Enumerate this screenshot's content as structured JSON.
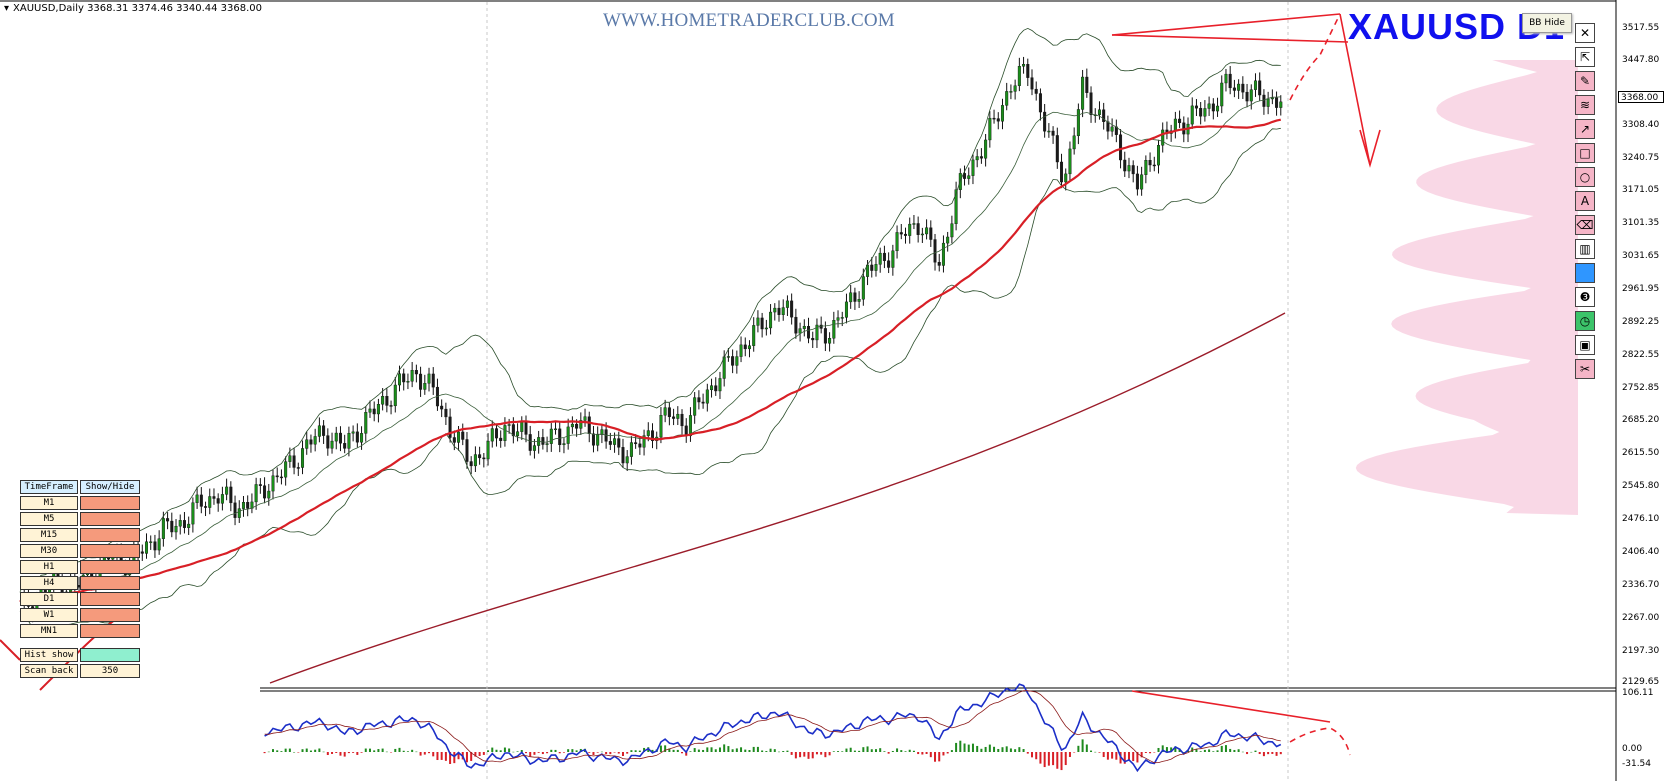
{
  "header": {
    "symbol_line": "XAUUSD,Daily  3368.31 3374.46 3340.44 3368.00"
  },
  "watermark": "WWW.HOMETRADERCLUB.COM",
  "big_title": "XAUUSD  D1",
  "bb_button": "BB Hide",
  "toolbar": {
    "icons": [
      "close-icon",
      "cursor-icon",
      "pen-icon",
      "wave-lines-icon",
      "arrow-icon",
      "rectangle-icon",
      "circle-icon",
      "text-icon",
      "eraser-icon",
      "trash-icon",
      "color-swatch-icon",
      "number-3-icon",
      "clock-icon",
      "save-icon",
      "scissors-icon"
    ],
    "glyphs": [
      "✕",
      "⇱",
      "✎",
      "≋",
      "↗",
      "□",
      "○",
      "A",
      "⌫",
      "▥",
      "",
      "❸",
      "◷",
      "▣",
      "✂"
    ],
    "colors": {
      "pink": "#f5b5c7",
      "blue": "#2f96ff"
    }
  },
  "price_axis": {
    "labels": [
      "3517.55",
      "3447.80",
      "3308.40",
      "3240.75",
      "3171.05",
      "3101.35",
      "3031.65",
      "2961.95",
      "2892.25",
      "2822.55",
      "2752.85",
      "2685.20",
      "2615.50",
      "2545.80",
      "2476.10",
      "2406.40",
      "2336.70",
      "2267.00",
      "2197.30",
      "2129.65"
    ],
    "current_price": "3368.00"
  },
  "osc_axis": {
    "labels": [
      "106.11",
      "0.00",
      "-31.54"
    ]
  },
  "panel": {
    "header": [
      "TimeFrame",
      "Show/Hide"
    ],
    "timeframes": [
      "M1",
      "M5",
      "M15",
      "M30",
      "H1",
      "H4",
      "D1",
      "W1",
      "MN1"
    ],
    "hist_label": "Hist show",
    "scan_label": "Scan back",
    "scan_value": "350"
  },
  "chart_data": {
    "type": "candlestick",
    "symbol": "XAUUSD",
    "timeframe": "Daily",
    "ohlc_last": {
      "open": 3368.31,
      "high": 3374.46,
      "low": 3340.44,
      "close": 3368.0
    },
    "ylim": [
      2129.65,
      3540
    ],
    "approx_close_path": [
      2290,
      2310,
      2345,
      2330,
      2360,
      2400,
      2385,
      2420,
      2455,
      2470,
      2510,
      2530,
      2500,
      2520,
      2560,
      2590,
      2640,
      2660,
      2630,
      2680,
      2720,
      2760,
      2790,
      2745,
      2660,
      2600,
      2630,
      2680,
      2650,
      2640,
      2655,
      2680,
      2660,
      2630,
      2620,
      2660,
      2700,
      2680,
      2740,
      2790,
      2840,
      2880,
      2930,
      2900,
      2860,
      2880,
      2930,
      3000,
      3030,
      3080,
      3110,
      3010,
      3170,
      3240,
      3310,
      3400,
      3430,
      3300,
      3200,
      3390,
      3330,
      3270,
      3180,
      3260,
      3310,
      3330,
      3350,
      3400,
      3390,
      3370,
      3368
    ],
    "indicators": [
      "Bollinger Bands",
      "Moving Average (red)",
      "Moving Average (dark red, long)",
      "Volume Profile (pink)"
    ],
    "oscillator": {
      "name": "MACD",
      "range": [
        -31.54,
        106.11
      ]
    }
  },
  "colors": {
    "bull": "#1a8f1a",
    "bear": "#1a1a1a",
    "ma_fast": "#d81f26",
    "ma_slow": "#9b1c2a",
    "bands": "#2a4d2a",
    "profile": "#f7c7dc",
    "macd_line": "#1c2fc8",
    "signal_line": "#8b1a1a",
    "hist_pos": "#1e8a1e",
    "hist_neg": "#d81f26",
    "annotation": "#e8202a",
    "title": "#1010ee"
  }
}
